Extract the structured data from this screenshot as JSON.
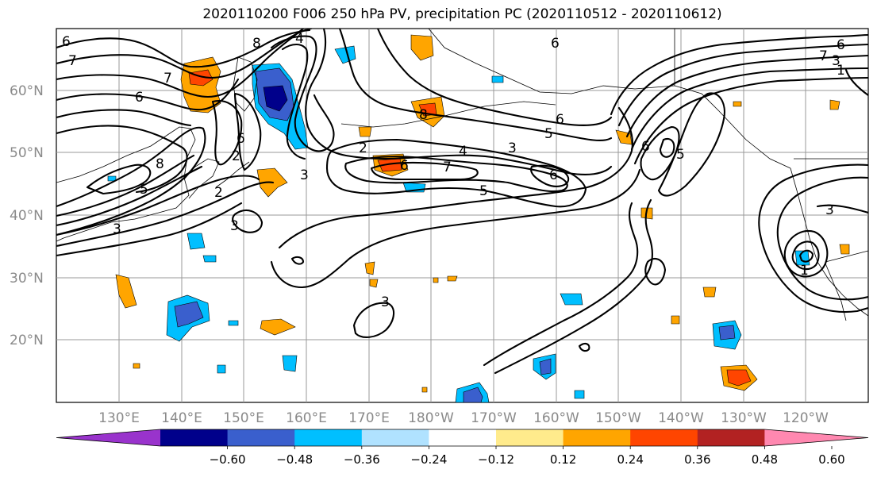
{
  "title": "2020110200 F006 250 hPa PV, precipitation PC (2020110512 - 2020110612)",
  "lat_labels": [
    "60°N",
    "50°N",
    "40°N",
    "30°N",
    "20°N"
  ],
  "lon_labels": [
    "130°E",
    "140°E",
    "150°E",
    "160°E",
    "170°E",
    "180°W",
    "170°W",
    "160°W",
    "150°W",
    "140°W",
    "130°W",
    "120°W"
  ],
  "contour_labels": [
    "6",
    "7",
    "7",
    "6",
    "8",
    "4",
    "6",
    "5",
    "8",
    "2",
    "2",
    "3",
    "3",
    "3",
    "7",
    "6",
    "2",
    "8",
    "5",
    "3",
    "4",
    "3",
    "6",
    "5",
    "6",
    "6",
    "6",
    "7",
    "1",
    "3",
    "5",
    "3",
    "1",
    "6",
    "8",
    "8",
    "3",
    "1",
    "6",
    "5",
    "1",
    "2",
    "1"
  ],
  "colorbar": {
    "ticks": [
      "−0.60",
      "−0.48",
      "−0.36",
      "−0.24",
      "−0.12",
      "0.12",
      "0.24",
      "0.36",
      "0.48",
      "0.60"
    ],
    "colors": [
      "#9933cc",
      "#00008b",
      "#3a5fcd",
      "#00bfff",
      "#b0e2ff",
      "#ffffff",
      "#ffeb8c",
      "#ffa500",
      "#ff4500",
      "#b22222",
      "#ff88b0"
    ]
  }
}
